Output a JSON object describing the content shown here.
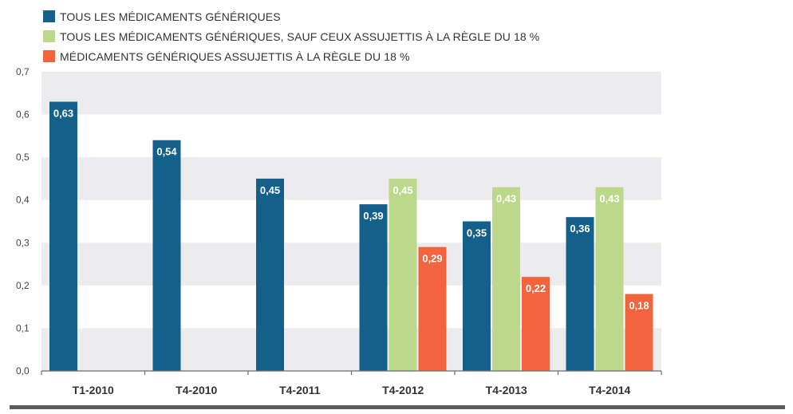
{
  "colors": {
    "series1": "#14608a",
    "series2": "#bcd88a",
    "series3": "#f2643e",
    "band": "#ececee"
  },
  "legend": [
    {
      "label": "TOUS LES MÉDICAMENTS GÉNÉRIQUES",
      "color_key": "series1"
    },
    {
      "label": "TOUS LES MÉDICAMENTS GÉNÉRIQUES, SAUF CEUX ASSUJETTIS À LA RÈGLE DU 18 %",
      "color_key": "series2"
    },
    {
      "label": "MÉDICAMENTS GÉNÉRIQUES ASSUJETTIS À LA RÈGLE DU 18 %",
      "color_key": "series3"
    }
  ],
  "chart_data": {
    "type": "bar",
    "categories": [
      "T1-2010",
      "T4-2010",
      "T4-2011",
      "T4-2012",
      "T4-2013",
      "T4-2014"
    ],
    "series": [
      {
        "name": "TOUS LES MÉDICAMENTS GÉNÉRIQUES",
        "values": [
          0.63,
          0.54,
          0.45,
          0.39,
          0.35,
          0.36
        ],
        "labels": [
          "0,63",
          "0,54",
          "0,45",
          "0,39",
          "0,35",
          "0,36"
        ]
      },
      {
        "name": "TOUS LES MÉDICAMENTS GÉNÉRIQUES, SAUF CEUX ASSUJETTIS À LA RÈGLE DU 18 %",
        "values": [
          null,
          null,
          null,
          0.45,
          0.43,
          0.43
        ],
        "labels": [
          "",
          "",
          "",
          "0,45",
          "0,43",
          "0,43"
        ]
      },
      {
        "name": "MÉDICAMENTS GÉNÉRIQUES ASSUJETTIS À LA RÈGLE DU 18 %",
        "values": [
          null,
          null,
          null,
          0.29,
          0.22,
          0.18
        ],
        "labels": [
          "",
          "",
          "",
          "0,29",
          "0,22",
          "0,18"
        ]
      }
    ],
    "yticks": [
      "0,0",
      "0,1",
      "0,2",
      "0,3",
      "0,4",
      "0,5",
      "0,6",
      "0,7"
    ],
    "ylim": [
      0,
      0.7
    ],
    "grid": "alternating horizontal bands",
    "legend_position": "top-left"
  }
}
